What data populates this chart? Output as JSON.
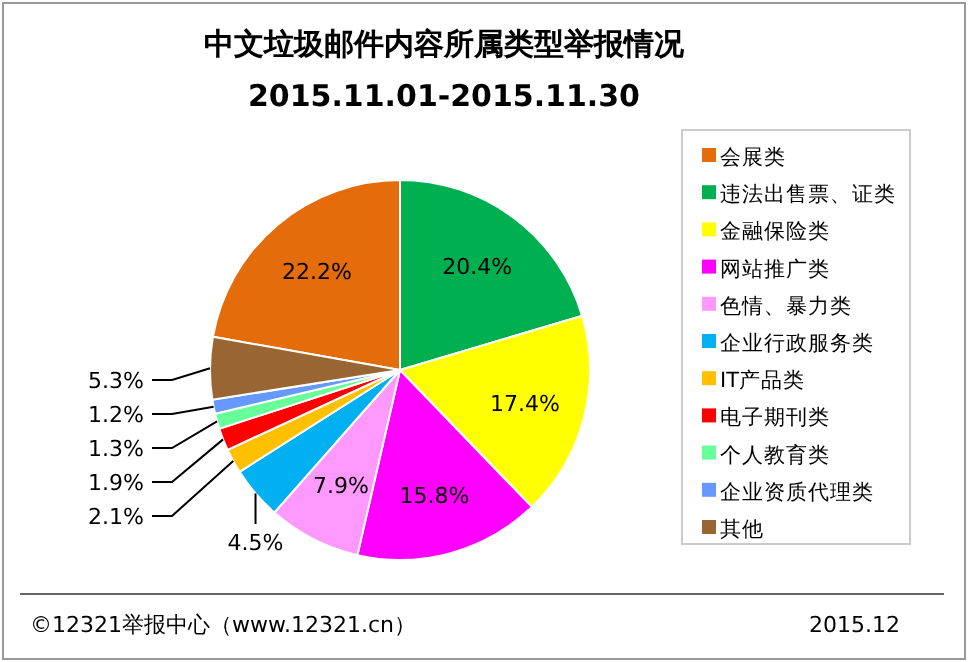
{
  "chart_data": {
    "type": "pie",
    "title": "中文垃圾邮件内容所属类型举报情况",
    "subtitle": "2015.11.01-2015.11.30",
    "categories": [
      "会展类",
      "违法出售票、证类",
      "金融保险类",
      "网站推广类",
      "色情、暴力类",
      "企业行政服务类",
      "IT产品类",
      "电子期刊类",
      "个人教育类",
      "企业资质代理类",
      "其他"
    ],
    "values": [
      22.2,
      20.4,
      17.4,
      15.8,
      7.9,
      4.5,
      2.1,
      1.9,
      1.3,
      1.2,
      5.3
    ],
    "colors": [
      "#e46c0a",
      "#00b050",
      "#ffff00",
      "#ff00ff",
      "#ff99ff",
      "#00b0f0",
      "#ffc000",
      "#ff0000",
      "#66ff99",
      "#6699ff",
      "#996633"
    ],
    "value_labels": [
      "22.2%",
      "20.4%",
      "17.4%",
      "15.8%",
      "7.9%",
      "4.5%",
      "2.1%",
      "1.9%",
      "1.3%",
      "1.2%",
      "5.3%"
    ],
    "legend": "right",
    "annotations": [
      "©12321举报中心（www.12321.cn）",
      "2015.12"
    ]
  }
}
